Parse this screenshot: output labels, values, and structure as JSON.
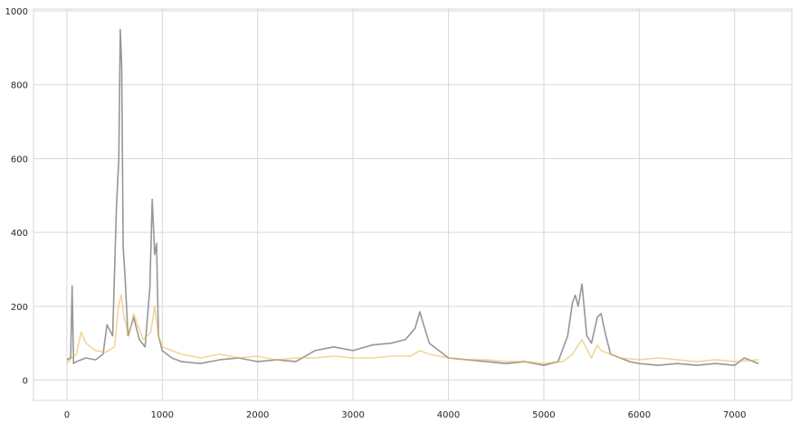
{
  "chart_data": {
    "type": "line",
    "title": "",
    "xlabel": "",
    "ylabel": "",
    "xlim": [
      -350,
      7600
    ],
    "ylim": [
      -55,
      1005
    ],
    "xticks": [
      0,
      1000,
      2000,
      3000,
      4000,
      5000,
      6000,
      7000
    ],
    "yticks": [
      0,
      200,
      400,
      600,
      800,
      1000
    ],
    "xtick_labels": [
      "0",
      "1000",
      "2000",
      "3000",
      "4000",
      "5000",
      "6000",
      "7000"
    ],
    "ytick_labels": [
      "0",
      "200",
      "400",
      "600",
      "800",
      "1000"
    ],
    "grid": true,
    "legend": "none",
    "series": [
      {
        "color": "#8c8c8c",
        "opacity": 0.9,
        "x": [
          0,
          40,
          55,
          70,
          100,
          200,
          300,
          380,
          420,
          480,
          520,
          545,
          560,
          575,
          590,
          610,
          640,
          700,
          760,
          820,
          870,
          895,
          920,
          940,
          960,
          1000,
          1100,
          1200,
          1400,
          1600,
          1800,
          2000,
          2200,
          2400,
          2600,
          2800,
          3000,
          3200,
          3400,
          3550,
          3650,
          3700,
          3740,
          3800,
          3900,
          4000,
          4200,
          4400,
          4600,
          4800,
          5000,
          5150,
          5250,
          5300,
          5330,
          5360,
          5400,
          5450,
          5500,
          5560,
          5600,
          5650,
          5700,
          5800,
          5900,
          6000,
          6200,
          6400,
          6600,
          6800,
          7000,
          7100,
          7250
        ],
        "y": [
          55,
          60,
          255,
          45,
          50,
          60,
          55,
          70,
          150,
          120,
          470,
          600,
          950,
          850,
          360,
          280,
          120,
          170,
          110,
          90,
          250,
          490,
          340,
          370,
          120,
          80,
          60,
          50,
          45,
          55,
          60,
          50,
          55,
          50,
          80,
          90,
          80,
          95,
          100,
          110,
          140,
          185,
          150,
          100,
          80,
          60,
          55,
          50,
          45,
          50,
          40,
          50,
          120,
          210,
          230,
          200,
          260,
          120,
          100,
          170,
          180,
          120,
          70,
          60,
          50,
          45,
          40,
          45,
          40,
          45,
          40,
          60,
          45
        ]
      },
      {
        "color": "#e6b448",
        "opacity": 0.55,
        "x": [
          0,
          50,
          100,
          150,
          200,
          300,
          400,
          500,
          540,
          570,
          600,
          650,
          700,
          800,
          880,
          920,
          960,
          1000,
          1200,
          1400,
          1600,
          1800,
          2000,
          2200,
          2400,
          2600,
          2800,
          3000,
          3200,
          3400,
          3600,
          3700,
          3800,
          4000,
          4200,
          4400,
          4600,
          4800,
          5000,
          5200,
          5300,
          5350,
          5400,
          5500,
          5560,
          5600,
          5700,
          5800,
          6000,
          6200,
          6400,
          6600,
          6800,
          7000,
          7250
        ],
        "y": [
          45,
          60,
          70,
          130,
          100,
          80,
          75,
          90,
          200,
          230,
          170,
          120,
          180,
          110,
          130,
          200,
          120,
          90,
          70,
          60,
          70,
          60,
          65,
          55,
          60,
          60,
          65,
          60,
          60,
          65,
          65,
          80,
          70,
          60,
          55,
          55,
          50,
          50,
          45,
          50,
          70,
          90,
          110,
          60,
          95,
          80,
          70,
          60,
          55,
          60,
          55,
          50,
          55,
          50,
          55
        ]
      }
    ]
  }
}
